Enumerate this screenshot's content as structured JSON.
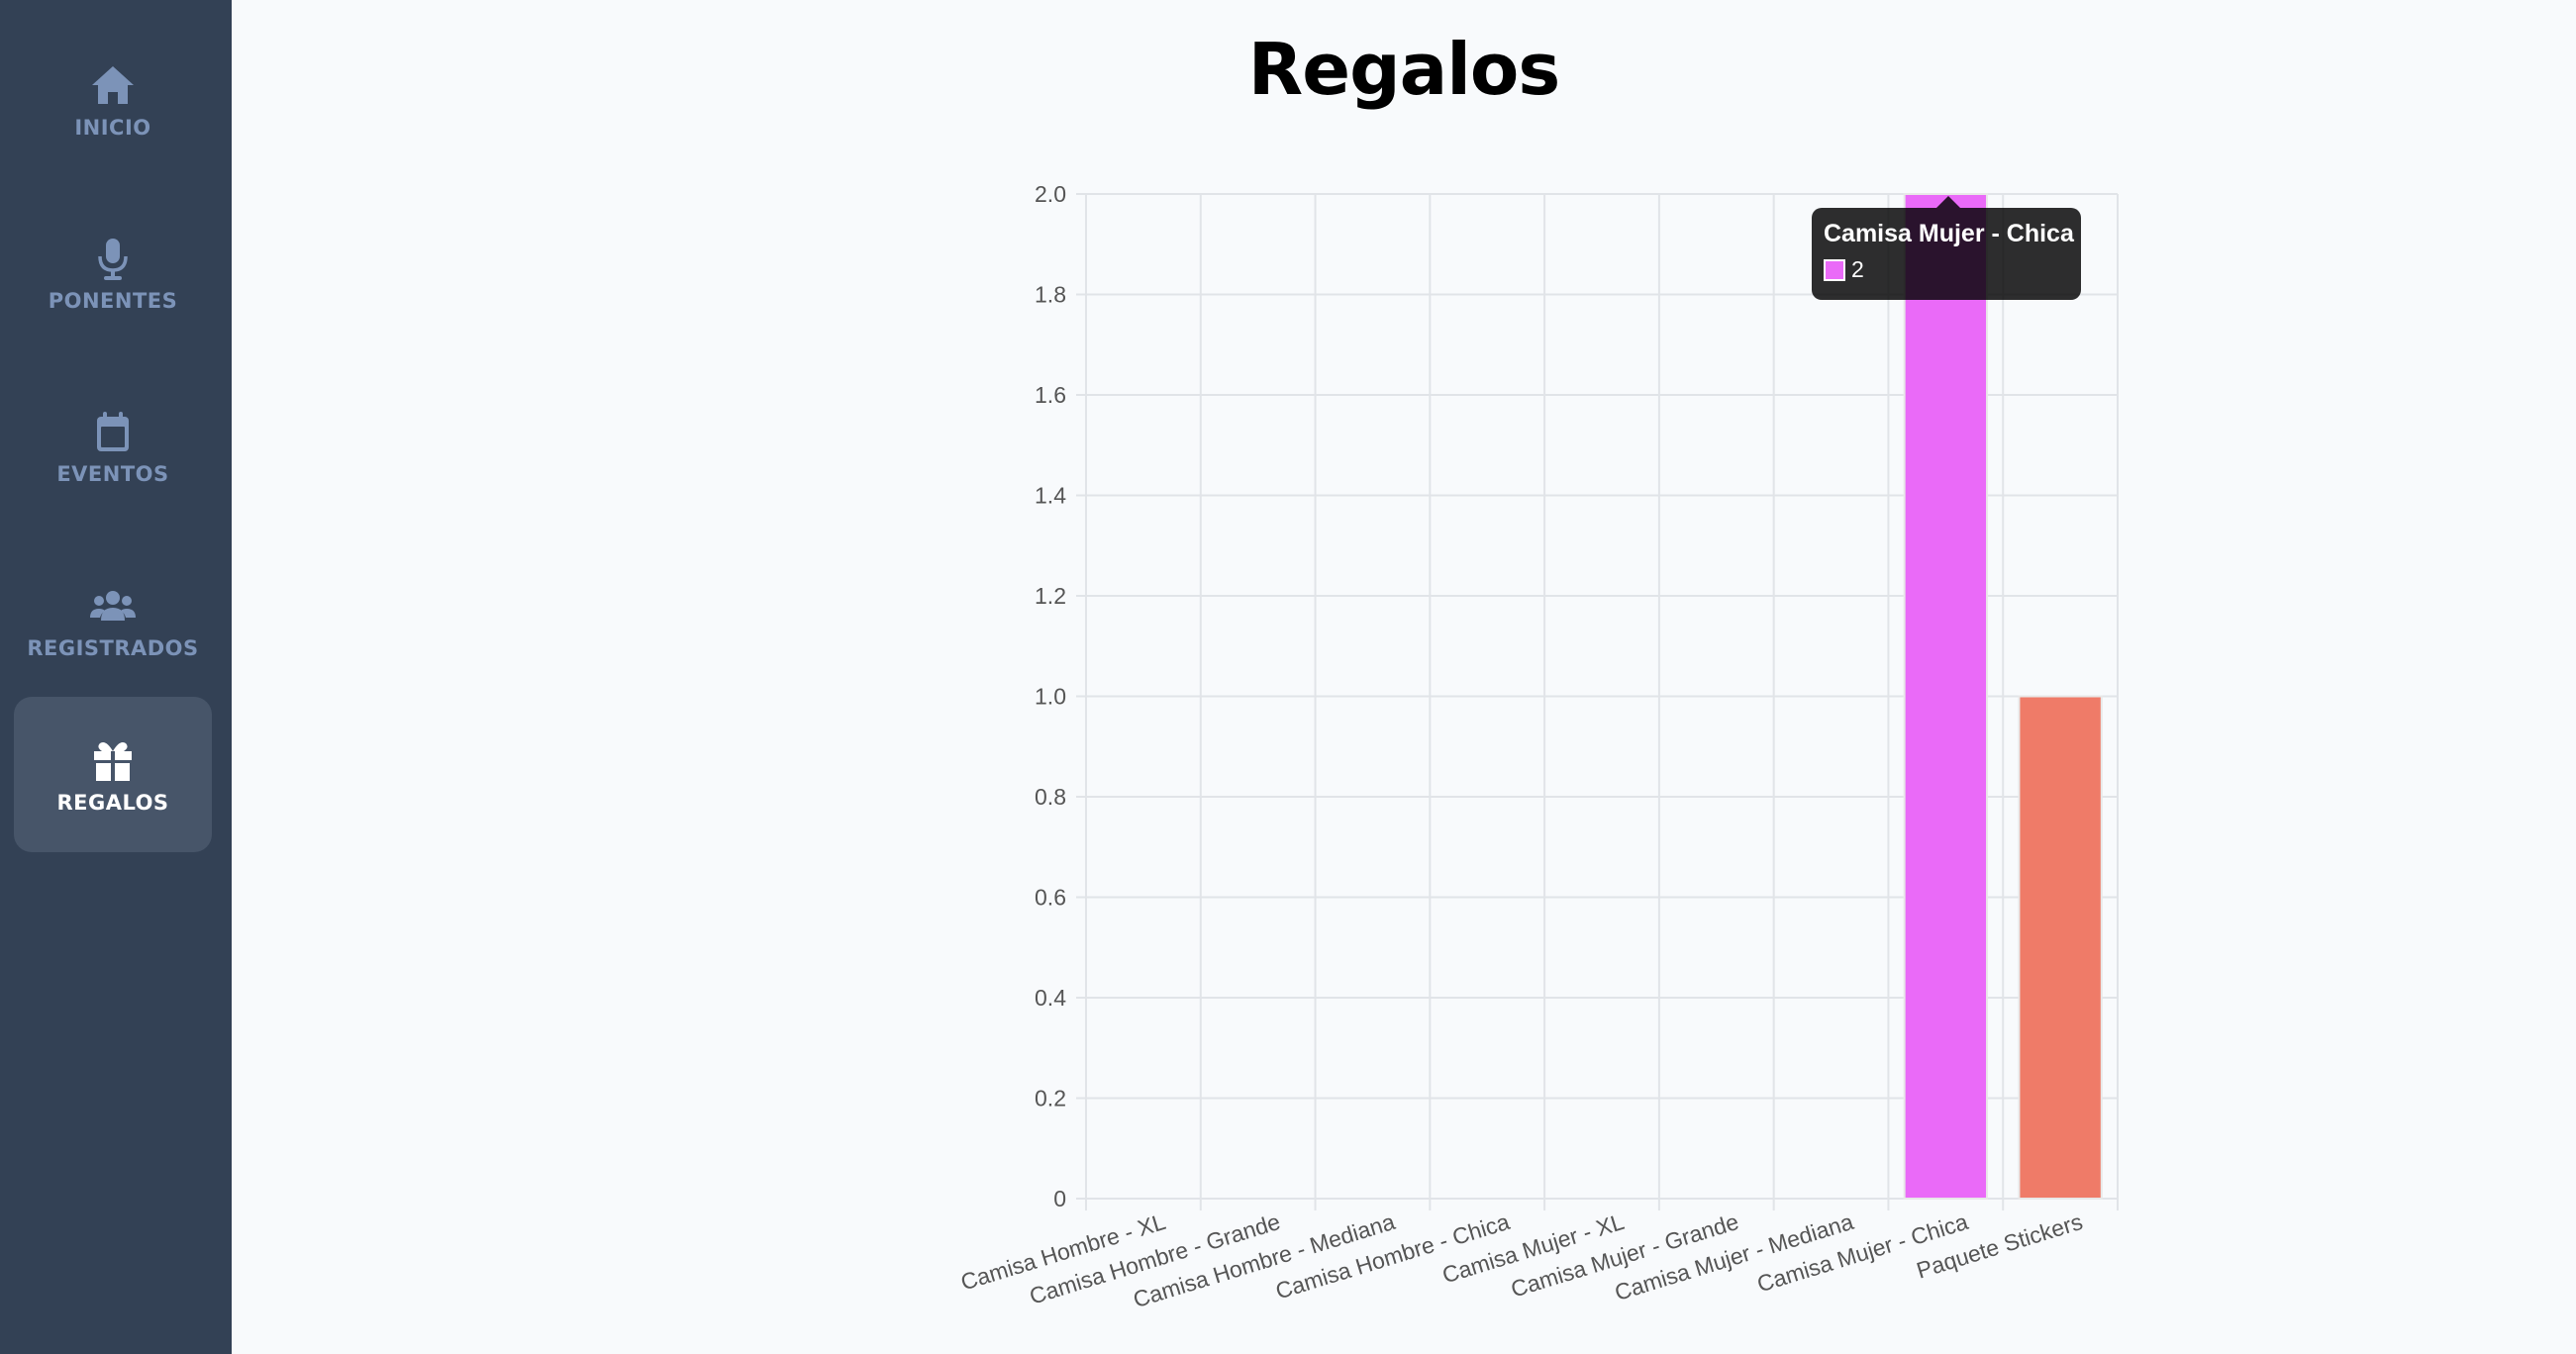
{
  "sidebar": {
    "items": [
      {
        "label": "INICIO",
        "icon": "home-icon",
        "active": false
      },
      {
        "label": "PONENTES",
        "icon": "microphone-icon",
        "active": false
      },
      {
        "label": "EVENTOS",
        "icon": "calendar-icon",
        "active": false
      },
      {
        "label": "REGISTRADOS",
        "icon": "users-icon",
        "active": false
      },
      {
        "label": "REGALOS",
        "icon": "gift-icon",
        "active": true
      }
    ]
  },
  "page": {
    "title": "Regalos"
  },
  "colors": {
    "sidebar_bg": "#334155",
    "sidebar_active_bg": "#475569",
    "sidebar_text": "#7c93b8",
    "bar_pink": "#ea6af8",
    "bar_salmon": "#ef7b68",
    "grid": "#e1e4e8"
  },
  "tooltip": {
    "title": "Camisa Mujer - Chica",
    "value": "2",
    "color": "#ea6af8"
  },
  "chart_data": {
    "type": "bar",
    "title": "",
    "xlabel": "",
    "ylabel": "",
    "categories": [
      "Camisa Hombre - XL",
      "Camisa Hombre - Grande",
      "Camisa Hombre - Mediana",
      "Camisa Hombre - Chica",
      "Camisa Mujer - XL",
      "Camisa Mujer - Grande",
      "Camisa Mujer - Mediana",
      "Camisa Mujer - Chica",
      "Paquete Stickers"
    ],
    "values": [
      0,
      0,
      0,
      0,
      0,
      0,
      0,
      2,
      1
    ],
    "bar_colors": [
      "#ea6af8",
      "#ea6af8",
      "#ea6af8",
      "#ea6af8",
      "#ea6af8",
      "#ea6af8",
      "#ea6af8",
      "#ea6af8",
      "#ef7b68"
    ],
    "ylim": [
      0,
      2
    ],
    "yticks": [
      "0",
      "0.2",
      "0.4",
      "0.6",
      "0.8",
      "1.0",
      "1.2",
      "1.4",
      "1.6",
      "1.8",
      "2.0"
    ],
    "grid": true,
    "legend": false
  }
}
